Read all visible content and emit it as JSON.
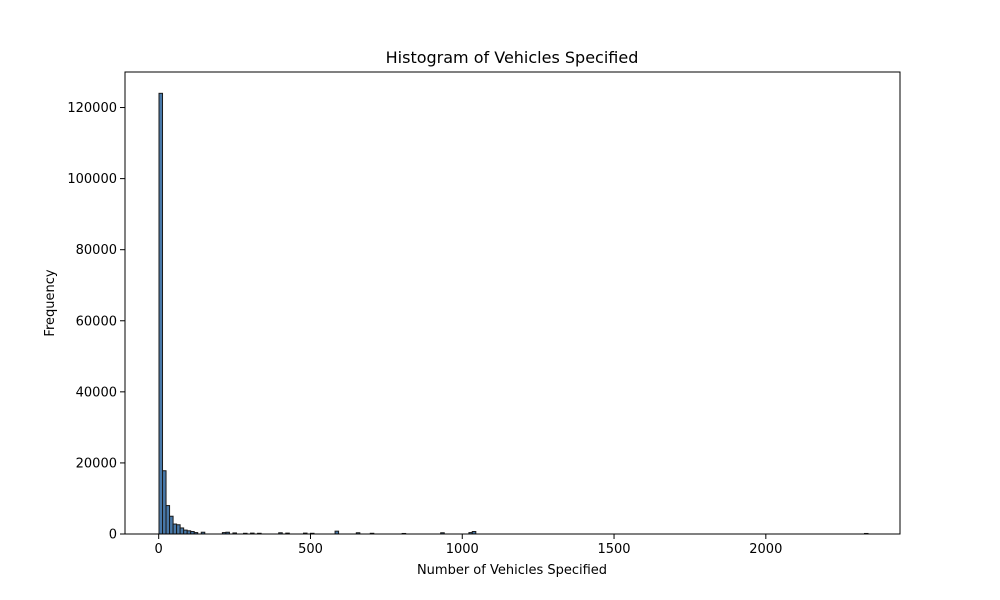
{
  "chart_data": {
    "type": "bar",
    "title": "Histogram of Vehicles Specified",
    "xlabel": "Number of Vehicles Specified",
    "ylabel": "Frequency",
    "xlim": [
      -111,
      2442
    ],
    "ylim": [
      0,
      130000
    ],
    "xticks": [
      0,
      500,
      1000,
      1500,
      2000
    ],
    "yticks": [
      0,
      20000,
      40000,
      60000,
      80000,
      100000,
      120000
    ],
    "grid": false,
    "bar_color": "#4878a8",
    "edge_color": "#1a1a1a",
    "bin_width": 11.6,
    "bin_starts": [
      1,
      12.6,
      24.2,
      35.8,
      47.4,
      59,
      70.6,
      82.2,
      93.8,
      105.4,
      117,
      140.2,
      209.8,
      221.4,
      244.6,
      279.4,
      302.6,
      325.8,
      395.4,
      418.6,
      477,
      500,
      581,
      651,
      697,
      802,
      929,
      1022,
      1033,
      2325
    ],
    "values": [
      124000,
      17800,
      8000,
      5000,
      2800,
      2600,
      1700,
      1100,
      900,
      700,
      400,
      500,
      400,
      500,
      300,
      200,
      250,
      200,
      350,
      250,
      250,
      200,
      800,
      350,
      200,
      150,
      350,
      400,
      700,
      150
    ]
  }
}
